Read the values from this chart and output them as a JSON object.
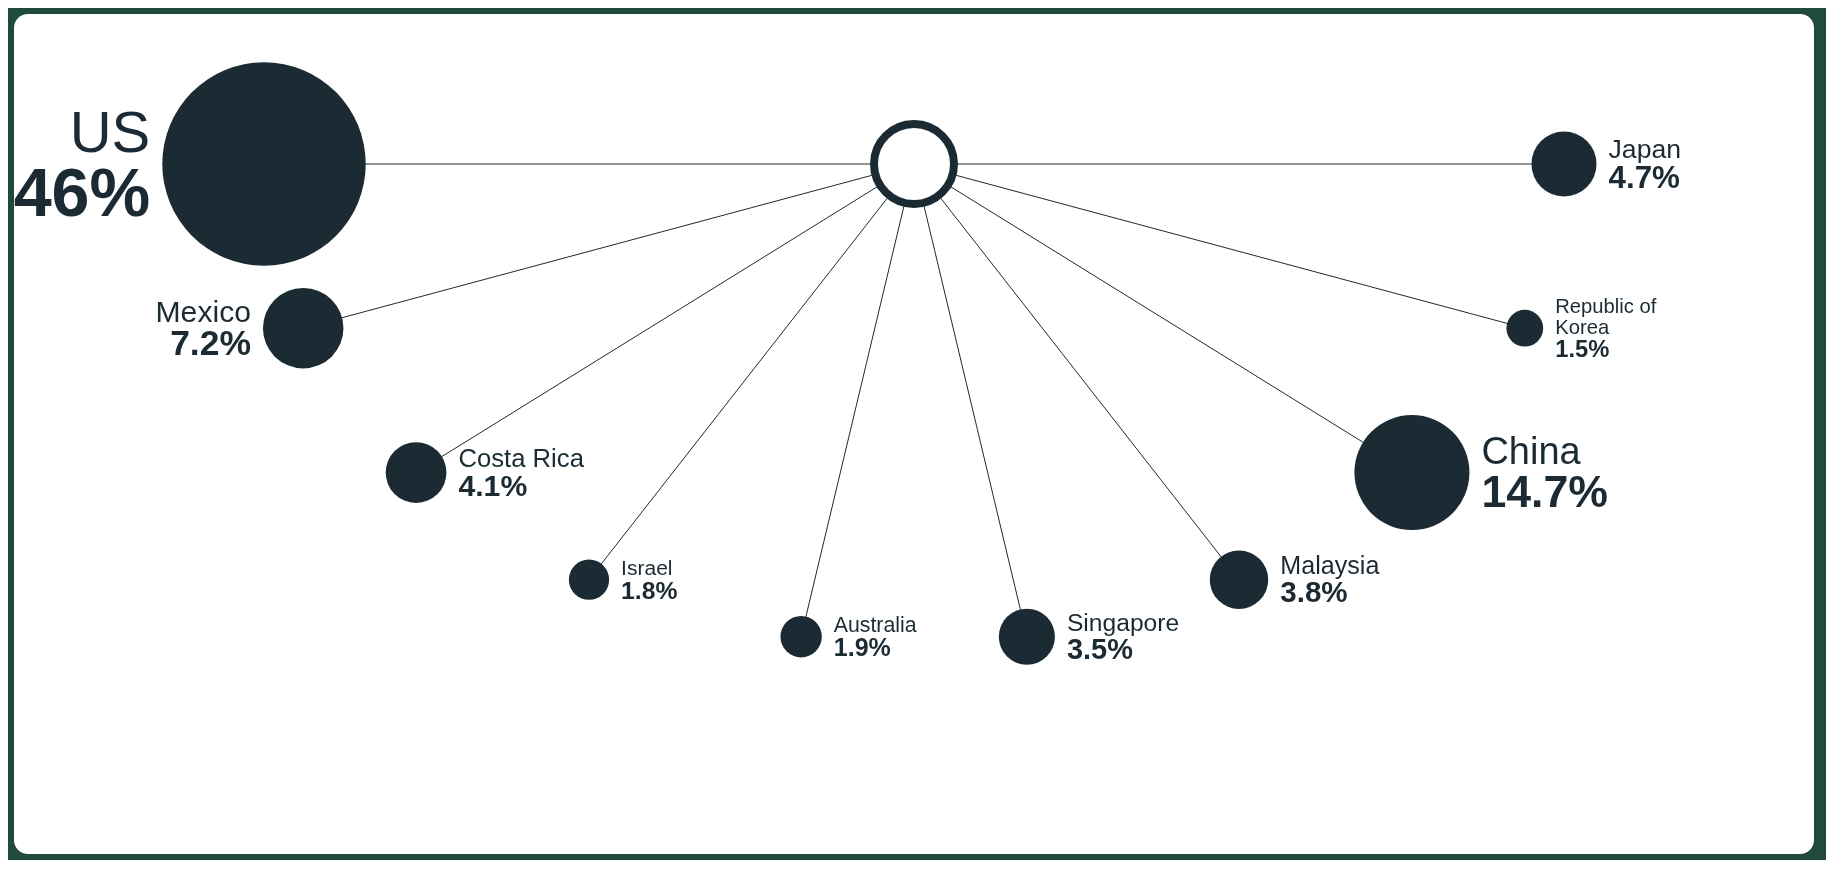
{
  "chart_data": {
    "type": "other",
    "categories": [
      "US",
      "Mexico",
      "Costa Rica",
      "Israel",
      "Australia",
      "Singapore",
      "Malaysia",
      "China",
      "Republic of Korea",
      "Japan"
    ],
    "values": [
      46,
      7.2,
      4.1,
      1.8,
      1.9,
      3.5,
      3.8,
      14.7,
      1.5,
      4.7
    ],
    "value_labels": [
      "46%",
      "7.2%",
      "4.1%",
      "1.8%",
      "1.9%",
      "3.5%",
      "3.8%",
      "14.7%",
      "1.5%",
      "4.7%"
    ],
    "color": "#1c2b33"
  }
}
